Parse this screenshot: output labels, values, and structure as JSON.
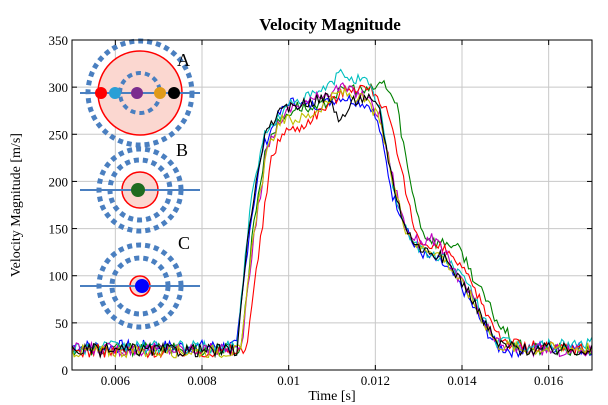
{
  "chart_data": {
    "type": "line",
    "title": "Velocity Magnitude",
    "xlabel": "Time [s]",
    "ylabel": "Velocity Magnitude [m/s]",
    "xlim": [
      0.005,
      0.017
    ],
    "ylim": [
      0,
      350
    ],
    "xticks": [
      0.006,
      0.008,
      0.01,
      0.012,
      0.014,
      0.016
    ],
    "xtick_labels": [
      "0.006",
      "0.008",
      "0.01",
      "0.012",
      "0.014",
      "0.016"
    ],
    "yticks": [
      0,
      50,
      100,
      150,
      200,
      250,
      300,
      350
    ],
    "ytick_labels": [
      "0",
      "50",
      "100",
      "150",
      "200",
      "250",
      "300",
      "350"
    ],
    "grid": true,
    "colors": {
      "blue": "#0000ff",
      "green": "#008000",
      "red": "#ff0000",
      "cyan": "#00bfbf",
      "magenta": "#bf00bf",
      "olive": "#bfbf00",
      "black": "#000000",
      "probe_blue": "#4a7fc0",
      "ring_fill": "#fbd7d0",
      "dot_purple": "#7b2d8e",
      "dot_orange": "#e09a1a",
      "dot_cyan": "#2a9fd6",
      "dot_green": "#1f6b1f"
    },
    "series": [
      {
        "color": "#0000ff",
        "x": [
          0.005,
          0.0088,
          0.0091,
          0.0094,
          0.0097,
          0.01,
          0.0104,
          0.0108,
          0.0112,
          0.0116,
          0.0119,
          0.0121,
          0.0124,
          0.0127,
          0.0129,
          0.0132,
          0.0135,
          0.0138,
          0.0141,
          0.0144,
          0.0148,
          0.0152,
          0.0158,
          0.017
        ],
        "y": [
          25,
          25,
          150,
          235,
          265,
          285,
          280,
          282,
          290,
          285,
          280,
          255,
          185,
          155,
          130,
          120,
          115,
          100,
          80,
          55,
          25,
          20,
          25,
          22
        ]
      },
      {
        "color": "#008000",
        "x": [
          0.005,
          0.0089,
          0.0092,
          0.0095,
          0.0098,
          0.0102,
          0.0106,
          0.011,
          0.0114,
          0.0118,
          0.0122,
          0.0125,
          0.0128,
          0.0131,
          0.0134,
          0.0137,
          0.014,
          0.0143,
          0.0146,
          0.0149,
          0.0153,
          0.0158,
          0.017
        ],
        "y": [
          22,
          22,
          160,
          240,
          265,
          280,
          275,
          290,
          300,
          295,
          305,
          280,
          200,
          145,
          135,
          135,
          125,
          95,
          70,
          45,
          25,
          22,
          20
        ]
      },
      {
        "color": "#ff0000",
        "x": [
          0.005,
          0.009,
          0.0093,
          0.0096,
          0.0099,
          0.0102,
          0.0106,
          0.011,
          0.0114,
          0.0117,
          0.012,
          0.0123,
          0.0126,
          0.0129,
          0.0132,
          0.0135,
          0.0138,
          0.0141,
          0.0144,
          0.0147,
          0.015,
          0.0155,
          0.017
        ],
        "y": [
          20,
          20,
          120,
          225,
          255,
          255,
          270,
          285,
          300,
          300,
          295,
          270,
          210,
          150,
          130,
          130,
          120,
          100,
          75,
          50,
          30,
          25,
          22
        ]
      },
      {
        "color": "#00bfbf",
        "x": [
          0.005,
          0.0088,
          0.0091,
          0.0094,
          0.0097,
          0.0101,
          0.0105,
          0.0109,
          0.0112,
          0.0115,
          0.0118,
          0.0121,
          0.0124,
          0.0127,
          0.013,
          0.0133,
          0.0136,
          0.0139,
          0.0142,
          0.0145,
          0.0148,
          0.0154,
          0.017
        ],
        "y": [
          24,
          24,
          170,
          245,
          265,
          285,
          290,
          300,
          315,
          310,
          305,
          280,
          195,
          150,
          130,
          120,
          120,
          105,
          85,
          55,
          30,
          25,
          28
        ]
      },
      {
        "color": "#bf00bf",
        "x": [
          0.005,
          0.0089,
          0.0092,
          0.0095,
          0.0098,
          0.0101,
          0.0105,
          0.0109,
          0.0112,
          0.0115,
          0.0118,
          0.0121,
          0.0124,
          0.0127,
          0.013,
          0.0133,
          0.0136,
          0.0139,
          0.0142,
          0.0145,
          0.0148,
          0.0153,
          0.017
        ],
        "y": [
          22,
          22,
          140,
          235,
          265,
          280,
          285,
          295,
          300,
          295,
          290,
          270,
          205,
          150,
          135,
          140,
          125,
          100,
          80,
          50,
          28,
          22,
          20
        ]
      },
      {
        "color": "#bfbf00",
        "x": [
          0.005,
          0.0089,
          0.0092,
          0.0095,
          0.0098,
          0.0101,
          0.0105,
          0.0109,
          0.0112,
          0.0115,
          0.0118,
          0.0121,
          0.0124,
          0.0127,
          0.013,
          0.0133,
          0.0136,
          0.0139,
          0.0142,
          0.0145,
          0.0148,
          0.0154,
          0.017
        ],
        "y": [
          20,
          20,
          150,
          230,
          265,
          265,
          270,
          285,
          295,
          290,
          285,
          265,
          200,
          150,
          130,
          128,
          118,
          98,
          78,
          52,
          28,
          22,
          24
        ]
      },
      {
        "color": "#000000",
        "x": [
          0.005,
          0.0088,
          0.0091,
          0.0094,
          0.0097,
          0.0101,
          0.0105,
          0.0109,
          0.0112,
          0.0115,
          0.0118,
          0.0121,
          0.0124,
          0.0127,
          0.013,
          0.0133,
          0.0136,
          0.0139,
          0.0142,
          0.0145,
          0.0148,
          0.0154,
          0.017
        ],
        "y": [
          21,
          21,
          155,
          240,
          270,
          280,
          285,
          290,
          265,
          285,
          290,
          275,
          200,
          150,
          130,
          125,
          118,
          100,
          80,
          52,
          28,
          22,
          22
        ]
      }
    ],
    "annotations": [
      {
        "label": "A",
        "probe_dots": [
          "#ff0000",
          "#2a9fd6",
          "#7b2d8e",
          "#e09a1a",
          "#000000"
        ]
      },
      {
        "label": "B",
        "probe_dots": [
          "#1f6b1f"
        ]
      },
      {
        "label": "C",
        "probe_dots": [
          "#0000ff"
        ]
      }
    ]
  }
}
